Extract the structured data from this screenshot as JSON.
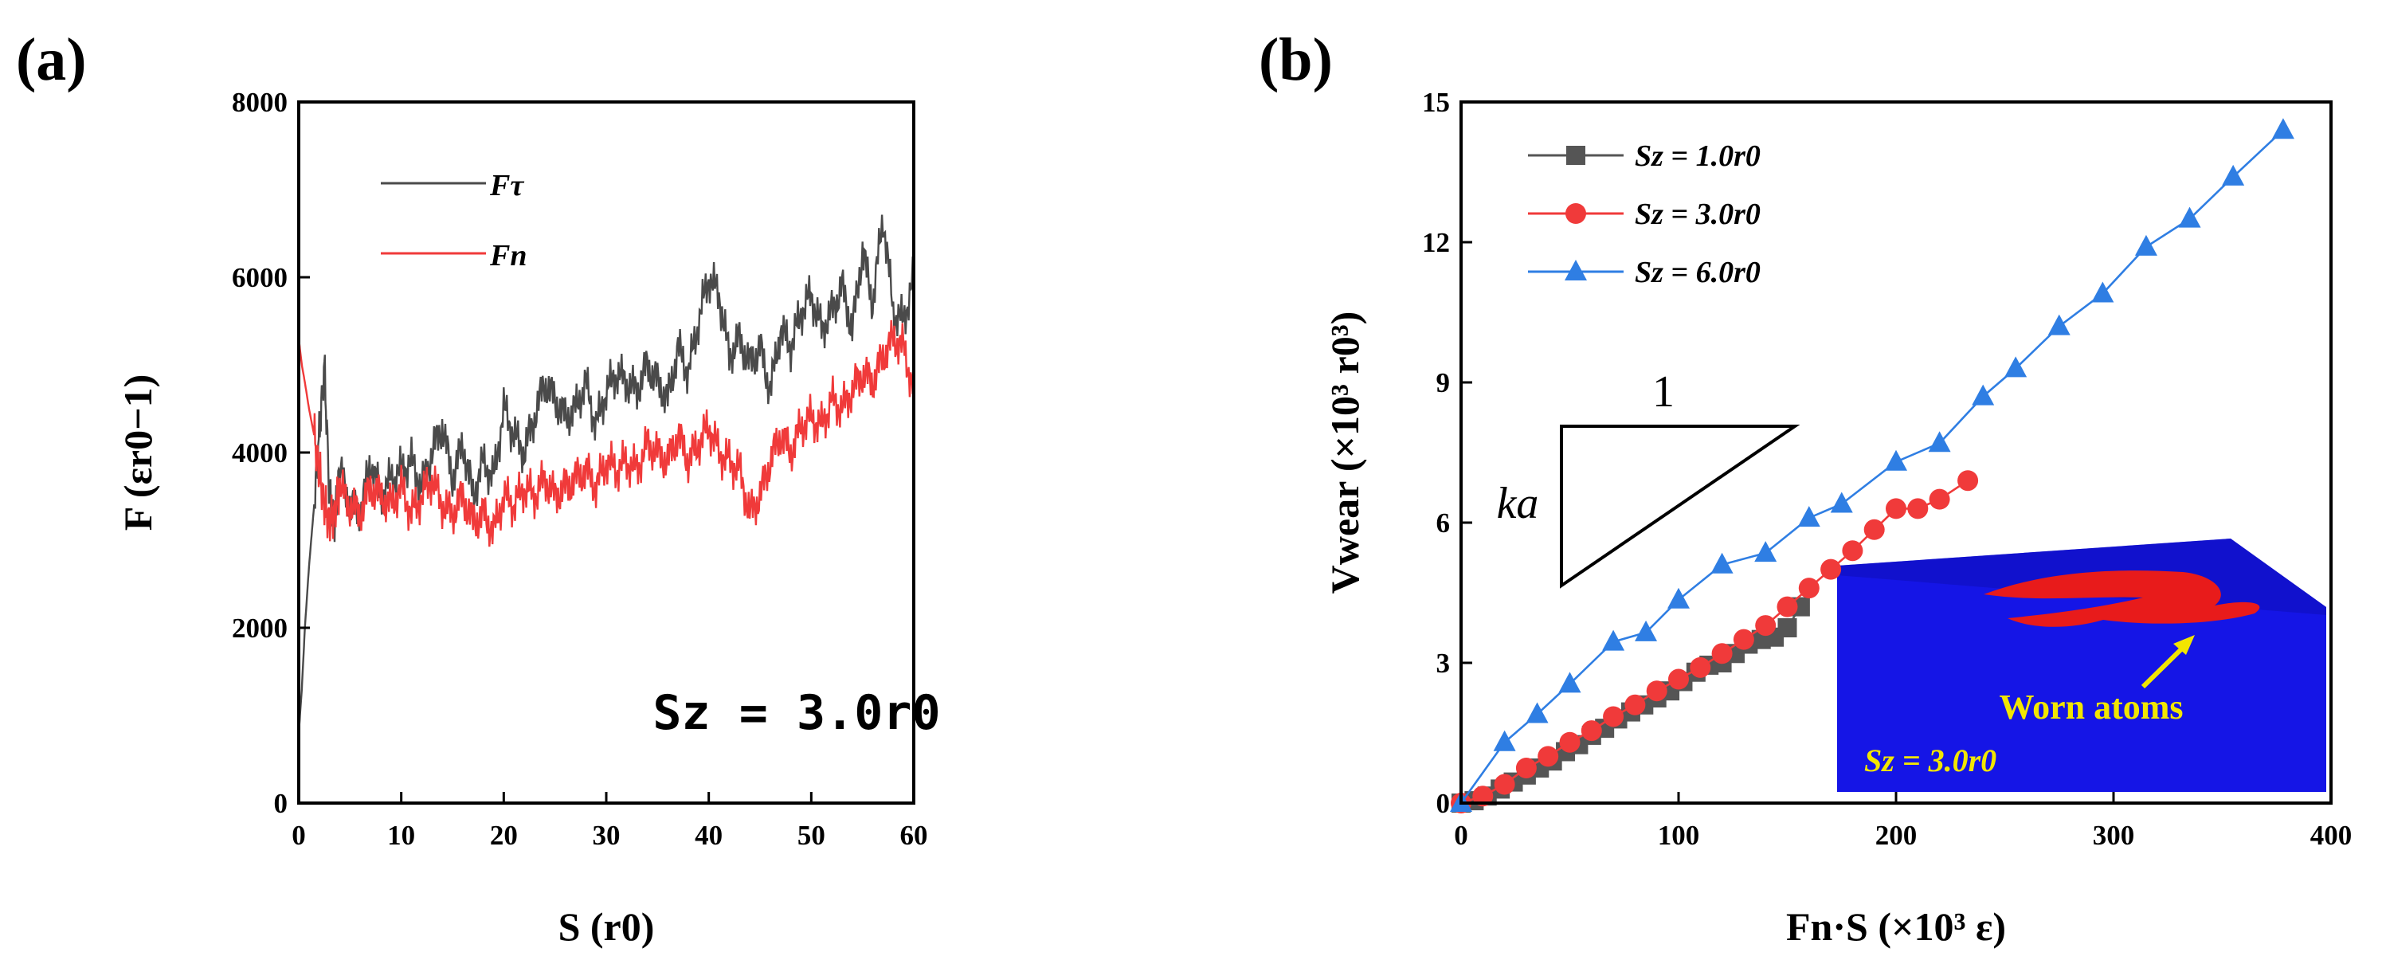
{
  "colors": {
    "f_tau": "#4a4a4a",
    "f_n": "#f03a3a",
    "sz1": "#555555",
    "sz3": "#f03a3a",
    "sz6": "#2f7ee3",
    "inset_bg": "#1515e6",
    "inset_worn": "#e81b1b",
    "arrow": "#f2e600"
  },
  "chart_data": [
    {
      "panel": "(a)",
      "type": "line",
      "xlabel": "S (r0)",
      "ylabel": "F (εr0−1)",
      "xlim": [
        0,
        60
      ],
      "ylim": [
        0,
        8000
      ],
      "xticks": [
        0,
        10,
        20,
        30,
        40,
        50,
        60
      ],
      "yticks": [
        0,
        2000,
        4000,
        6000,
        8000
      ],
      "legend": [
        "Fτ",
        "Fn"
      ],
      "annotation": "Sz = 3.0r0",
      "series": [
        {
          "name": "Fτ",
          "x": [
            0,
            0.3,
            0.6,
            1,
            1.5,
            2,
            2.5,
            3,
            3.5,
            4,
            5,
            6,
            7,
            8,
            9,
            10,
            11,
            12,
            13,
            14,
            15,
            16,
            17,
            18,
            19,
            20,
            21,
            22,
            23,
            24,
            25,
            26,
            27,
            28,
            29,
            30,
            31,
            32,
            33,
            34,
            35,
            36,
            37,
            38,
            39,
            40,
            41,
            42,
            43,
            44,
            45,
            46,
            47,
            48,
            49,
            50,
            51,
            52,
            53,
            54,
            55,
            56,
            57,
            58,
            59,
            60
          ],
          "y": [
            800,
            1300,
            2000,
            2700,
            3400,
            4200,
            5000,
            3500,
            3200,
            3800,
            3400,
            3300,
            3900,
            3500,
            3700,
            3800,
            3900,
            3600,
            4000,
            4300,
            3700,
            4100,
            3500,
            3900,
            3700,
            4500,
            4200,
            4000,
            4400,
            4800,
            4600,
            4400,
            4500,
            4800,
            4300,
            4700,
            4900,
            4800,
            4700,
            5000,
            4800,
            4600,
            5200,
            4900,
            5500,
            6000,
            5800,
            5100,
            5300,
            5000,
            5200,
            4700,
            5400,
            5200,
            5600,
            5800,
            5400,
            5600,
            5900,
            5400,
            6300,
            5700,
            6700,
            5600,
            5500,
            6000
          ]
        },
        {
          "name": "Fn",
          "x": [
            0,
            0.3,
            0.6,
            1,
            1.5,
            2,
            2.5,
            3,
            3.5,
            4,
            5,
            6,
            7,
            8,
            9,
            10,
            11,
            12,
            13,
            14,
            15,
            16,
            17,
            18,
            19,
            20,
            21,
            22,
            23,
            24,
            25,
            26,
            27,
            28,
            29,
            30,
            31,
            32,
            33,
            34,
            35,
            36,
            37,
            38,
            39,
            40,
            41,
            42,
            43,
            44,
            45,
            46,
            47,
            48,
            49,
            50,
            51,
            52,
            53,
            54,
            55,
            56,
            57,
            58,
            59,
            60
          ],
          "y": [
            5300,
            5000,
            4800,
            4500,
            4200,
            3800,
            3400,
            3200,
            3300,
            3600,
            3400,
            3300,
            3600,
            3500,
            3400,
            3600,
            3300,
            3500,
            3700,
            3400,
            3300,
            3500,
            3200,
            3300,
            3100,
            3500,
            3400,
            3600,
            3500,
            3700,
            3500,
            3600,
            3700,
            3800,
            3600,
            3900,
            3800,
            3900,
            3800,
            4100,
            4000,
            3900,
            4200,
            3900,
            4100,
            4300,
            4000,
            3900,
            3800,
            3300,
            3500,
            3900,
            4200,
            4000,
            4300,
            4400,
            4300,
            4600,
            4500,
            4700,
            4900,
            4800,
            5100,
            5300,
            5200,
            4700
          ]
        }
      ]
    },
    {
      "panel": "(b)",
      "type": "line",
      "xlabel": "Fn·S (×10³ ε)",
      "ylabel": "Vwear (×10³ r0³)",
      "xlim": [
        0,
        400
      ],
      "ylim": [
        0,
        15
      ],
      "xticks": [
        0,
        100,
        200,
        300,
        400
      ],
      "yticks": [
        0,
        3,
        6,
        9,
        12,
        15
      ],
      "slope_triangle": {
        "top_label": "1",
        "side_label": "ka"
      },
      "inset": {
        "label": "Sz = 3.0r0",
        "annotation": "Worn atoms"
      },
      "series": [
        {
          "name": "Sz = 1.0r0",
          "marker": "square",
          "x": [
            0,
            6,
            12,
            18,
            24,
            30,
            36,
            42,
            48,
            54,
            60,
            66,
            72,
            78,
            84,
            90,
            96,
            102,
            108,
            114,
            120,
            126,
            132,
            138,
            144,
            150,
            156
          ],
          "y": [
            0,
            0.05,
            0.15,
            0.3,
            0.45,
            0.6,
            0.75,
            0.9,
            1.1,
            1.25,
            1.45,
            1.6,
            1.8,
            1.95,
            2.1,
            2.25,
            2.4,
            2.6,
            2.8,
            2.95,
            3.0,
            3.2,
            3.4,
            3.5,
            3.55,
            3.75,
            4.2
          ]
        },
        {
          "name": "Sz = 3.0r0",
          "marker": "circle",
          "x": [
            0,
            10,
            20,
            30,
            40,
            50,
            60,
            70,
            80,
            90,
            100,
            110,
            120,
            130,
            140,
            150,
            160,
            170,
            180,
            190,
            200,
            210,
            220,
            233
          ],
          "y": [
            0,
            0.15,
            0.4,
            0.75,
            1.0,
            1.3,
            1.55,
            1.85,
            2.1,
            2.4,
            2.65,
            2.9,
            3.2,
            3.5,
            3.8,
            4.2,
            4.6,
            5.0,
            5.4,
            5.85,
            6.3,
            6.3,
            6.5,
            6.9
          ]
        },
        {
          "name": "Sz = 6.0r0",
          "marker": "triangle",
          "x": [
            0,
            20,
            35,
            50,
            70,
            85,
            100,
            120,
            140,
            160,
            175,
            200,
            220,
            240,
            255,
            275,
            295,
            315,
            335,
            355,
            378
          ],
          "y": [
            0,
            1.3,
            1.9,
            2.55,
            3.45,
            3.65,
            4.35,
            5.1,
            5.35,
            6.1,
            6.4,
            7.3,
            7.7,
            8.7,
            9.3,
            10.2,
            10.9,
            11.9,
            12.5,
            13.4,
            14.4
          ]
        }
      ]
    }
  ]
}
